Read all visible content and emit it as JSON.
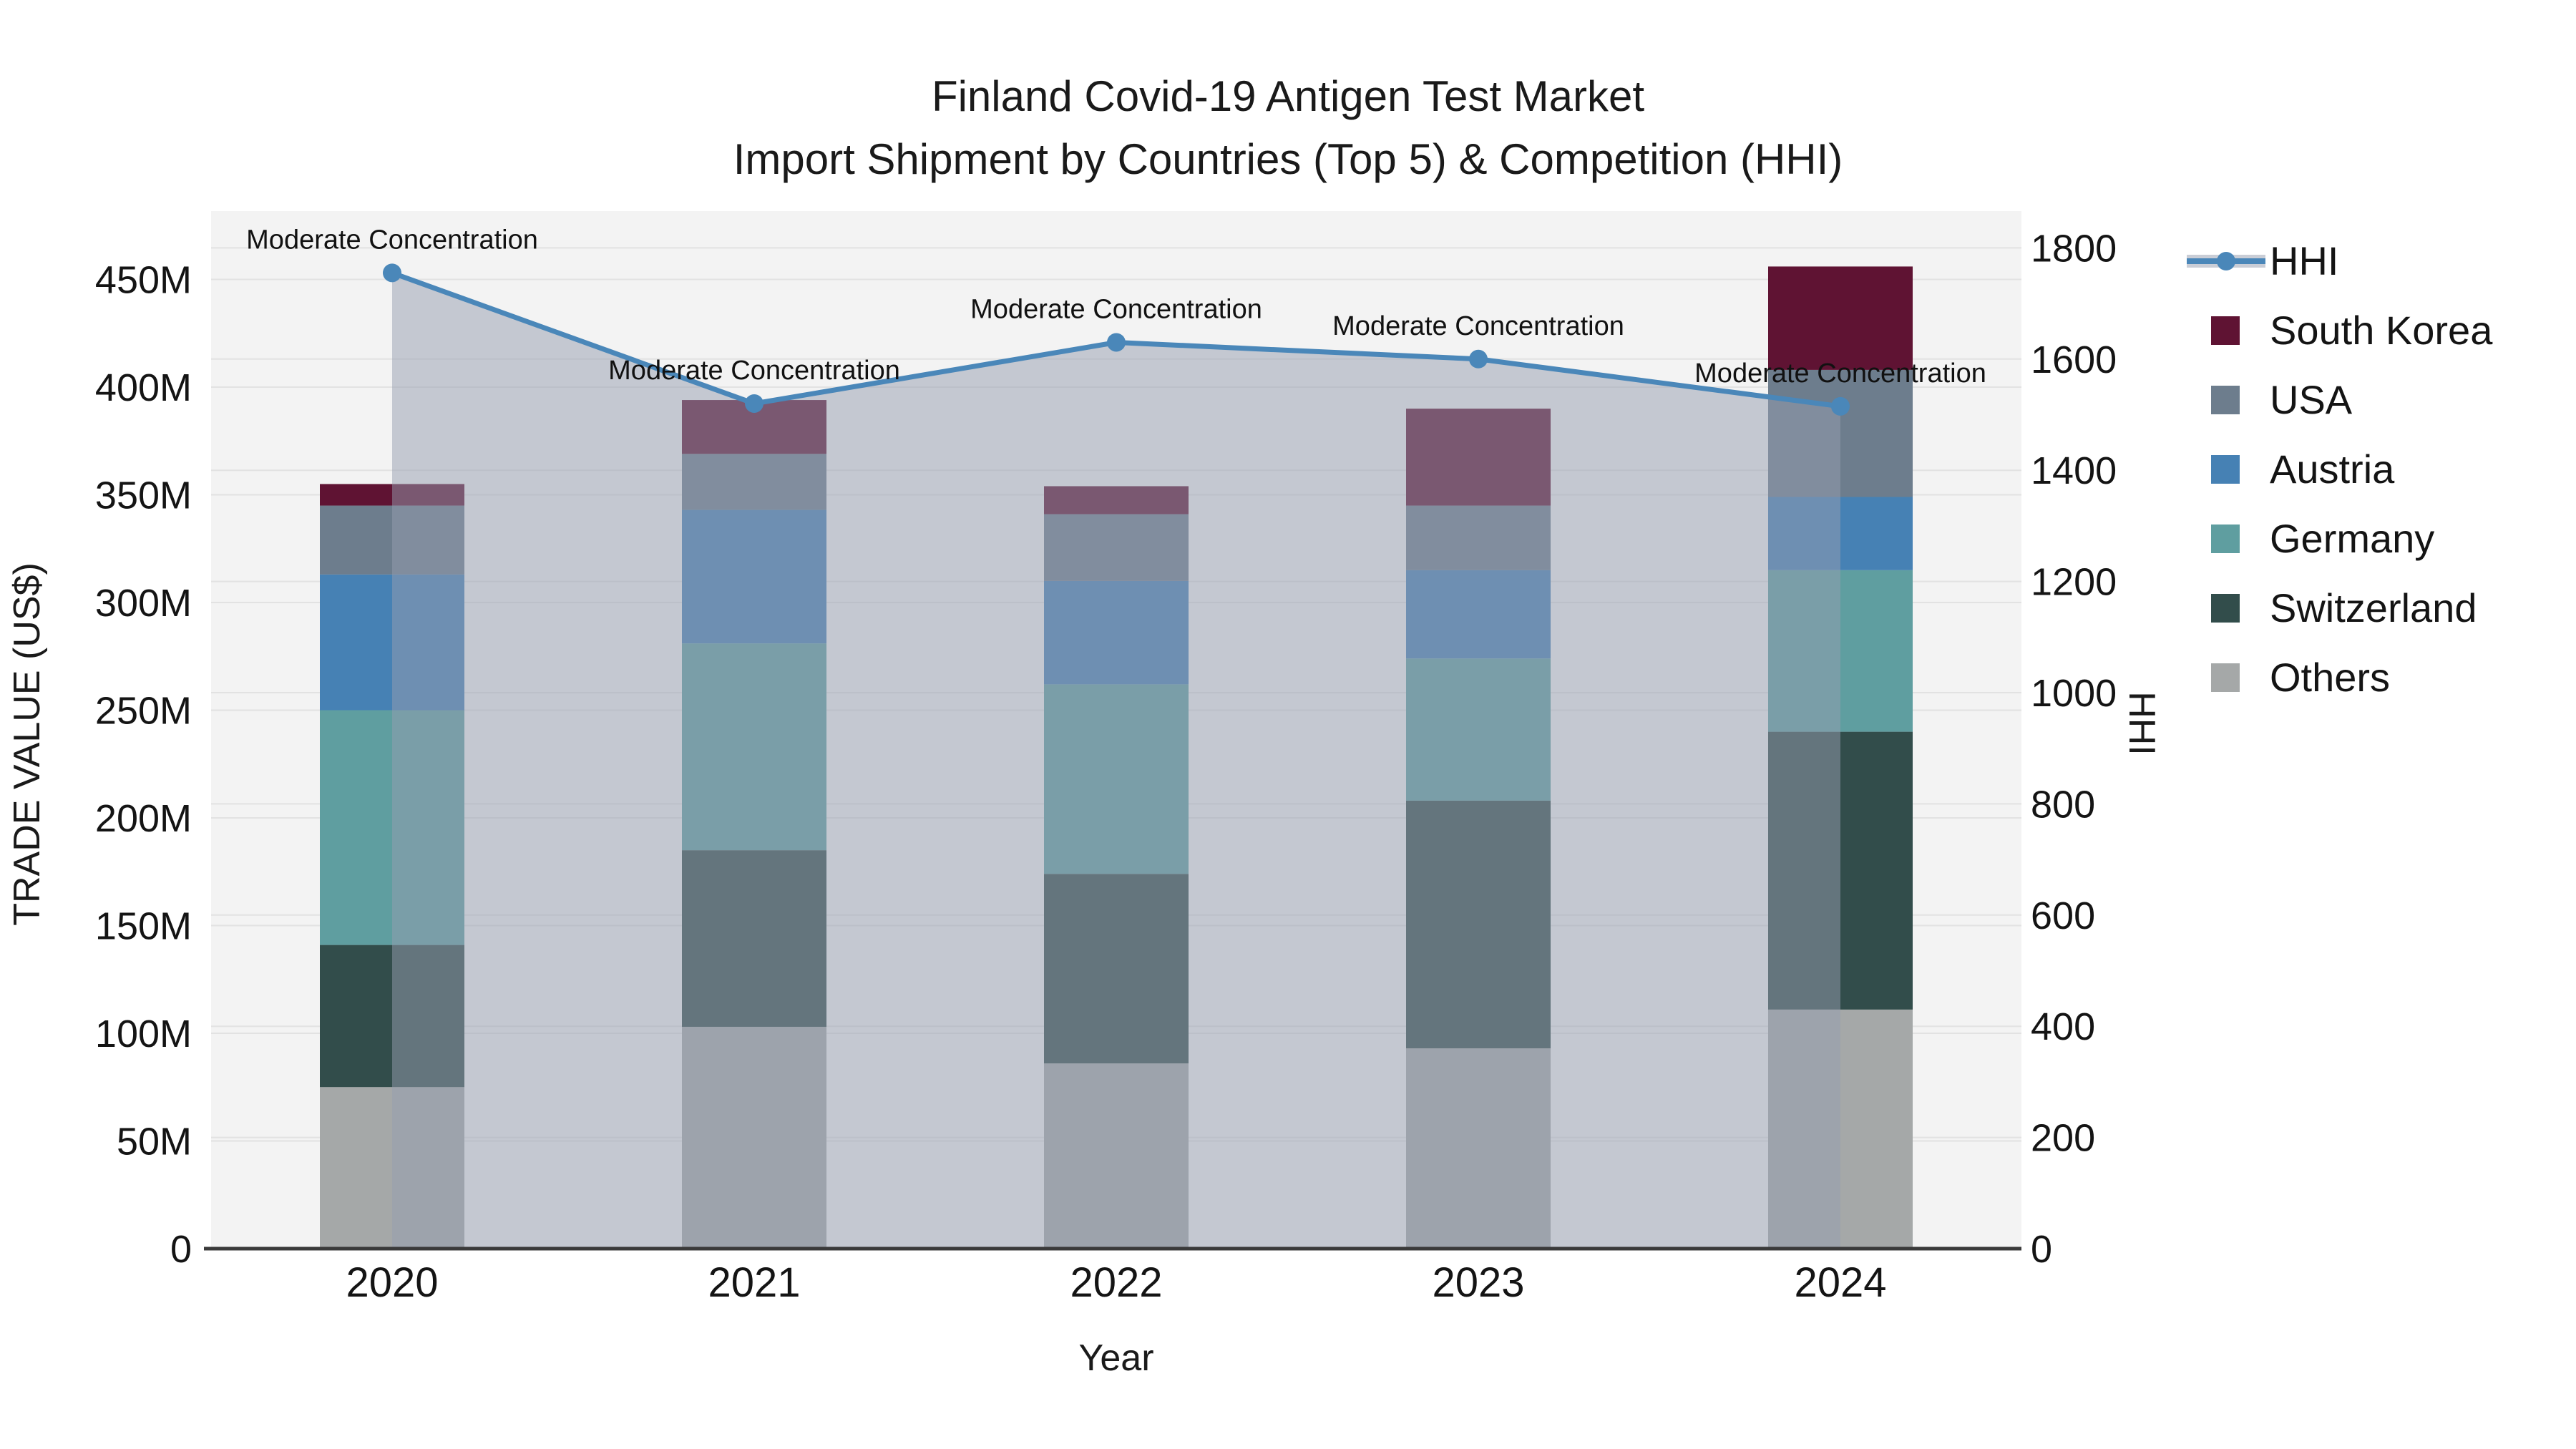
{
  "title": {
    "line1": "Finland Covid-19 Antigen Test Market",
    "line2": "Import Shipment by Countries (Top 5) & Competition (HHI)"
  },
  "axes": {
    "x": {
      "title": "Year",
      "categories": [
        "2020",
        "2021",
        "2022",
        "2023",
        "2024"
      ]
    },
    "y_left": {
      "title": "TRADE VALUE (US$)",
      "tick_values": [
        0,
        50,
        100,
        150,
        200,
        250,
        300,
        350,
        400,
        450
      ],
      "tick_labels": [
        "0",
        "50M",
        "100M",
        "150M",
        "200M",
        "250M",
        "300M",
        "350M",
        "400M",
        "450M"
      ],
      "range": [
        0,
        481
      ]
    },
    "y_right": {
      "title": "HHI",
      "tick_values": [
        0,
        200,
        400,
        600,
        800,
        1000,
        1200,
        1400,
        1600,
        1800
      ],
      "tick_labels": [
        "0",
        "200",
        "400",
        "600",
        "800",
        "1000",
        "1200",
        "1400",
        "1600",
        "1800"
      ],
      "range": [
        0,
        1866
      ]
    }
  },
  "legend": {
    "items": [
      {
        "label": "HHI",
        "type": "line",
        "color": "#4A87B9"
      },
      {
        "label": "South Korea",
        "type": "square",
        "color": "#5F1333"
      },
      {
        "label": "USA",
        "type": "square",
        "color": "#6D7D8D"
      },
      {
        "label": "Austria",
        "type": "square",
        "color": "#4681B4"
      },
      {
        "label": "Germany",
        "type": "square",
        "color": "#5F9EA0"
      },
      {
        "label": "Switzerland",
        "type": "square",
        "color": "#324D4B"
      },
      {
        "label": "Others",
        "type": "square",
        "color": "#A5A8A8"
      }
    ]
  },
  "chart_data": {
    "type": "bar",
    "stacked": true,
    "unit": "million US$",
    "categories": [
      "2020",
      "2021",
      "2022",
      "2023",
      "2024"
    ],
    "series": [
      {
        "name": "Others",
        "color": "#A5A8A8",
        "values": [
          75,
          103,
          86,
          93,
          111
        ]
      },
      {
        "name": "Switzerland",
        "color": "#324D4B",
        "values": [
          66,
          82,
          88,
          115,
          129
        ]
      },
      {
        "name": "Germany",
        "color": "#5F9EA0",
        "values": [
          109,
          96,
          88,
          66,
          75
        ]
      },
      {
        "name": "Austria",
        "color": "#4681B4",
        "values": [
          63,
          62,
          48,
          41,
          34
        ]
      },
      {
        "name": "USA",
        "color": "#6D7D8D",
        "values": [
          32,
          26,
          31,
          30,
          59
        ]
      },
      {
        "name": "South Korea",
        "color": "#5F1333",
        "values": [
          10,
          25,
          13,
          45,
          48
        ]
      }
    ],
    "bar_totals": [
      355,
      394,
      354,
      390,
      456
    ],
    "line_series": {
      "name": "HHI",
      "axis": "right",
      "color": "#4A87B9",
      "area_fill": "rgba(150,157,175,0.5)",
      "values": [
        1755,
        1520,
        1630,
        1600,
        1515
      ]
    },
    "annotations": [
      {
        "text": "Moderate Concentration",
        "category": "2020"
      },
      {
        "text": "Moderate Concentration",
        "category": "2021"
      },
      {
        "text": "Moderate Concentration",
        "category": "2022"
      },
      {
        "text": "Moderate Concentration",
        "category": "2023"
      },
      {
        "text": "Moderate Concentration",
        "category": "2024"
      }
    ],
    "title": "Finland Covid-19 Antigen Test Market — Import Shipment by Countries (Top 5) & Competition (HHI)",
    "xlabel": "Year",
    "ylabel_left": "TRADE VALUE (US$)",
    "ylabel_right": "HHI",
    "legend_position": "right",
    "grid": true,
    "plot_bg": "#F3F3F3",
    "grid_color": "#E2E2E2",
    "axisline_color": "#3A3A3A"
  }
}
